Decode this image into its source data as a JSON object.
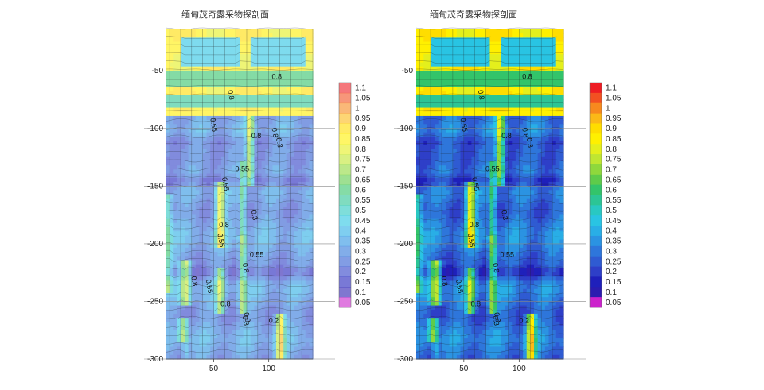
{
  "chart_data": [
    {
      "type": "heatmap",
      "title": "缅甸茂奇露采物探剖面",
      "subtitle": "",
      "xlabel": "",
      "ylabel": "",
      "xlim": [
        7,
        140
      ],
      "ylim": [
        -300,
        -14
      ],
      "x_ticks": [
        50,
        100
      ],
      "y_ticks": [
        -50,
        -100,
        -150,
        -200,
        -250,
        -300
      ],
      "grid": true,
      "colormap": "semi-transparent",
      "opacity": 0.6,
      "contour_labels": [
        "0.8",
        "0.8",
        "0.55",
        "0.8",
        "0.8",
        "0.3",
        "0.55",
        "0.3",
        "0.55",
        "0.8",
        "0.55",
        "0.8",
        "0.55",
        "0.8",
        "0.55",
        "0.8",
        "0.3",
        "0.8",
        "0.2"
      ]
    },
    {
      "type": "heatmap",
      "title": "缅甸茂奇露采物探剖面",
      "subtitle": "",
      "xlabel": "",
      "ylabel": "",
      "xlim": [
        7,
        140
      ],
      "ylim": [
        -300,
        -14
      ],
      "x_ticks": [
        50,
        100
      ],
      "y_ticks": [
        -50,
        -100,
        -150,
        -200,
        -250,
        -300
      ],
      "grid": true,
      "colormap": "opaque",
      "opacity": 1.0,
      "contour_labels": [
        "0.8",
        "0.8",
        "0.55",
        "0.8",
        "0.8",
        "0.3",
        "0.55",
        "0.3",
        "0.55",
        "0.8",
        "0.55",
        "0.8",
        "0.55",
        "0.8",
        "0.55",
        "0.8",
        "0.3",
        "0.8",
        "0.2"
      ]
    }
  ],
  "colorbar": {
    "labels": [
      "1.1",
      "1.05",
      "1",
      "0.95",
      "0.9",
      "0.85",
      "0.8",
      "0.75",
      "0.7",
      "0.65",
      "0.6",
      "0.55",
      "0.5",
      "0.45",
      "0.4",
      "0.35",
      "0.3",
      "0.25",
      "0.2",
      "0.15",
      "0.1",
      "0.05"
    ],
    "colors": [
      "#ee1c23",
      "#f25022",
      "#f7891e",
      "#fbb917",
      "#ffdd00",
      "#fff000",
      "#e4ef1c",
      "#bfe631",
      "#8fd83c",
      "#5ecb4a",
      "#33c46a",
      "#2cc595",
      "#29c8c2",
      "#29c4e3",
      "#29aee6",
      "#2b93e2",
      "#2e76db",
      "#2f5bd2",
      "#2e3fc8",
      "#1f20bb",
      "#2b1cb0",
      "#cc22cc"
    ]
  }
}
